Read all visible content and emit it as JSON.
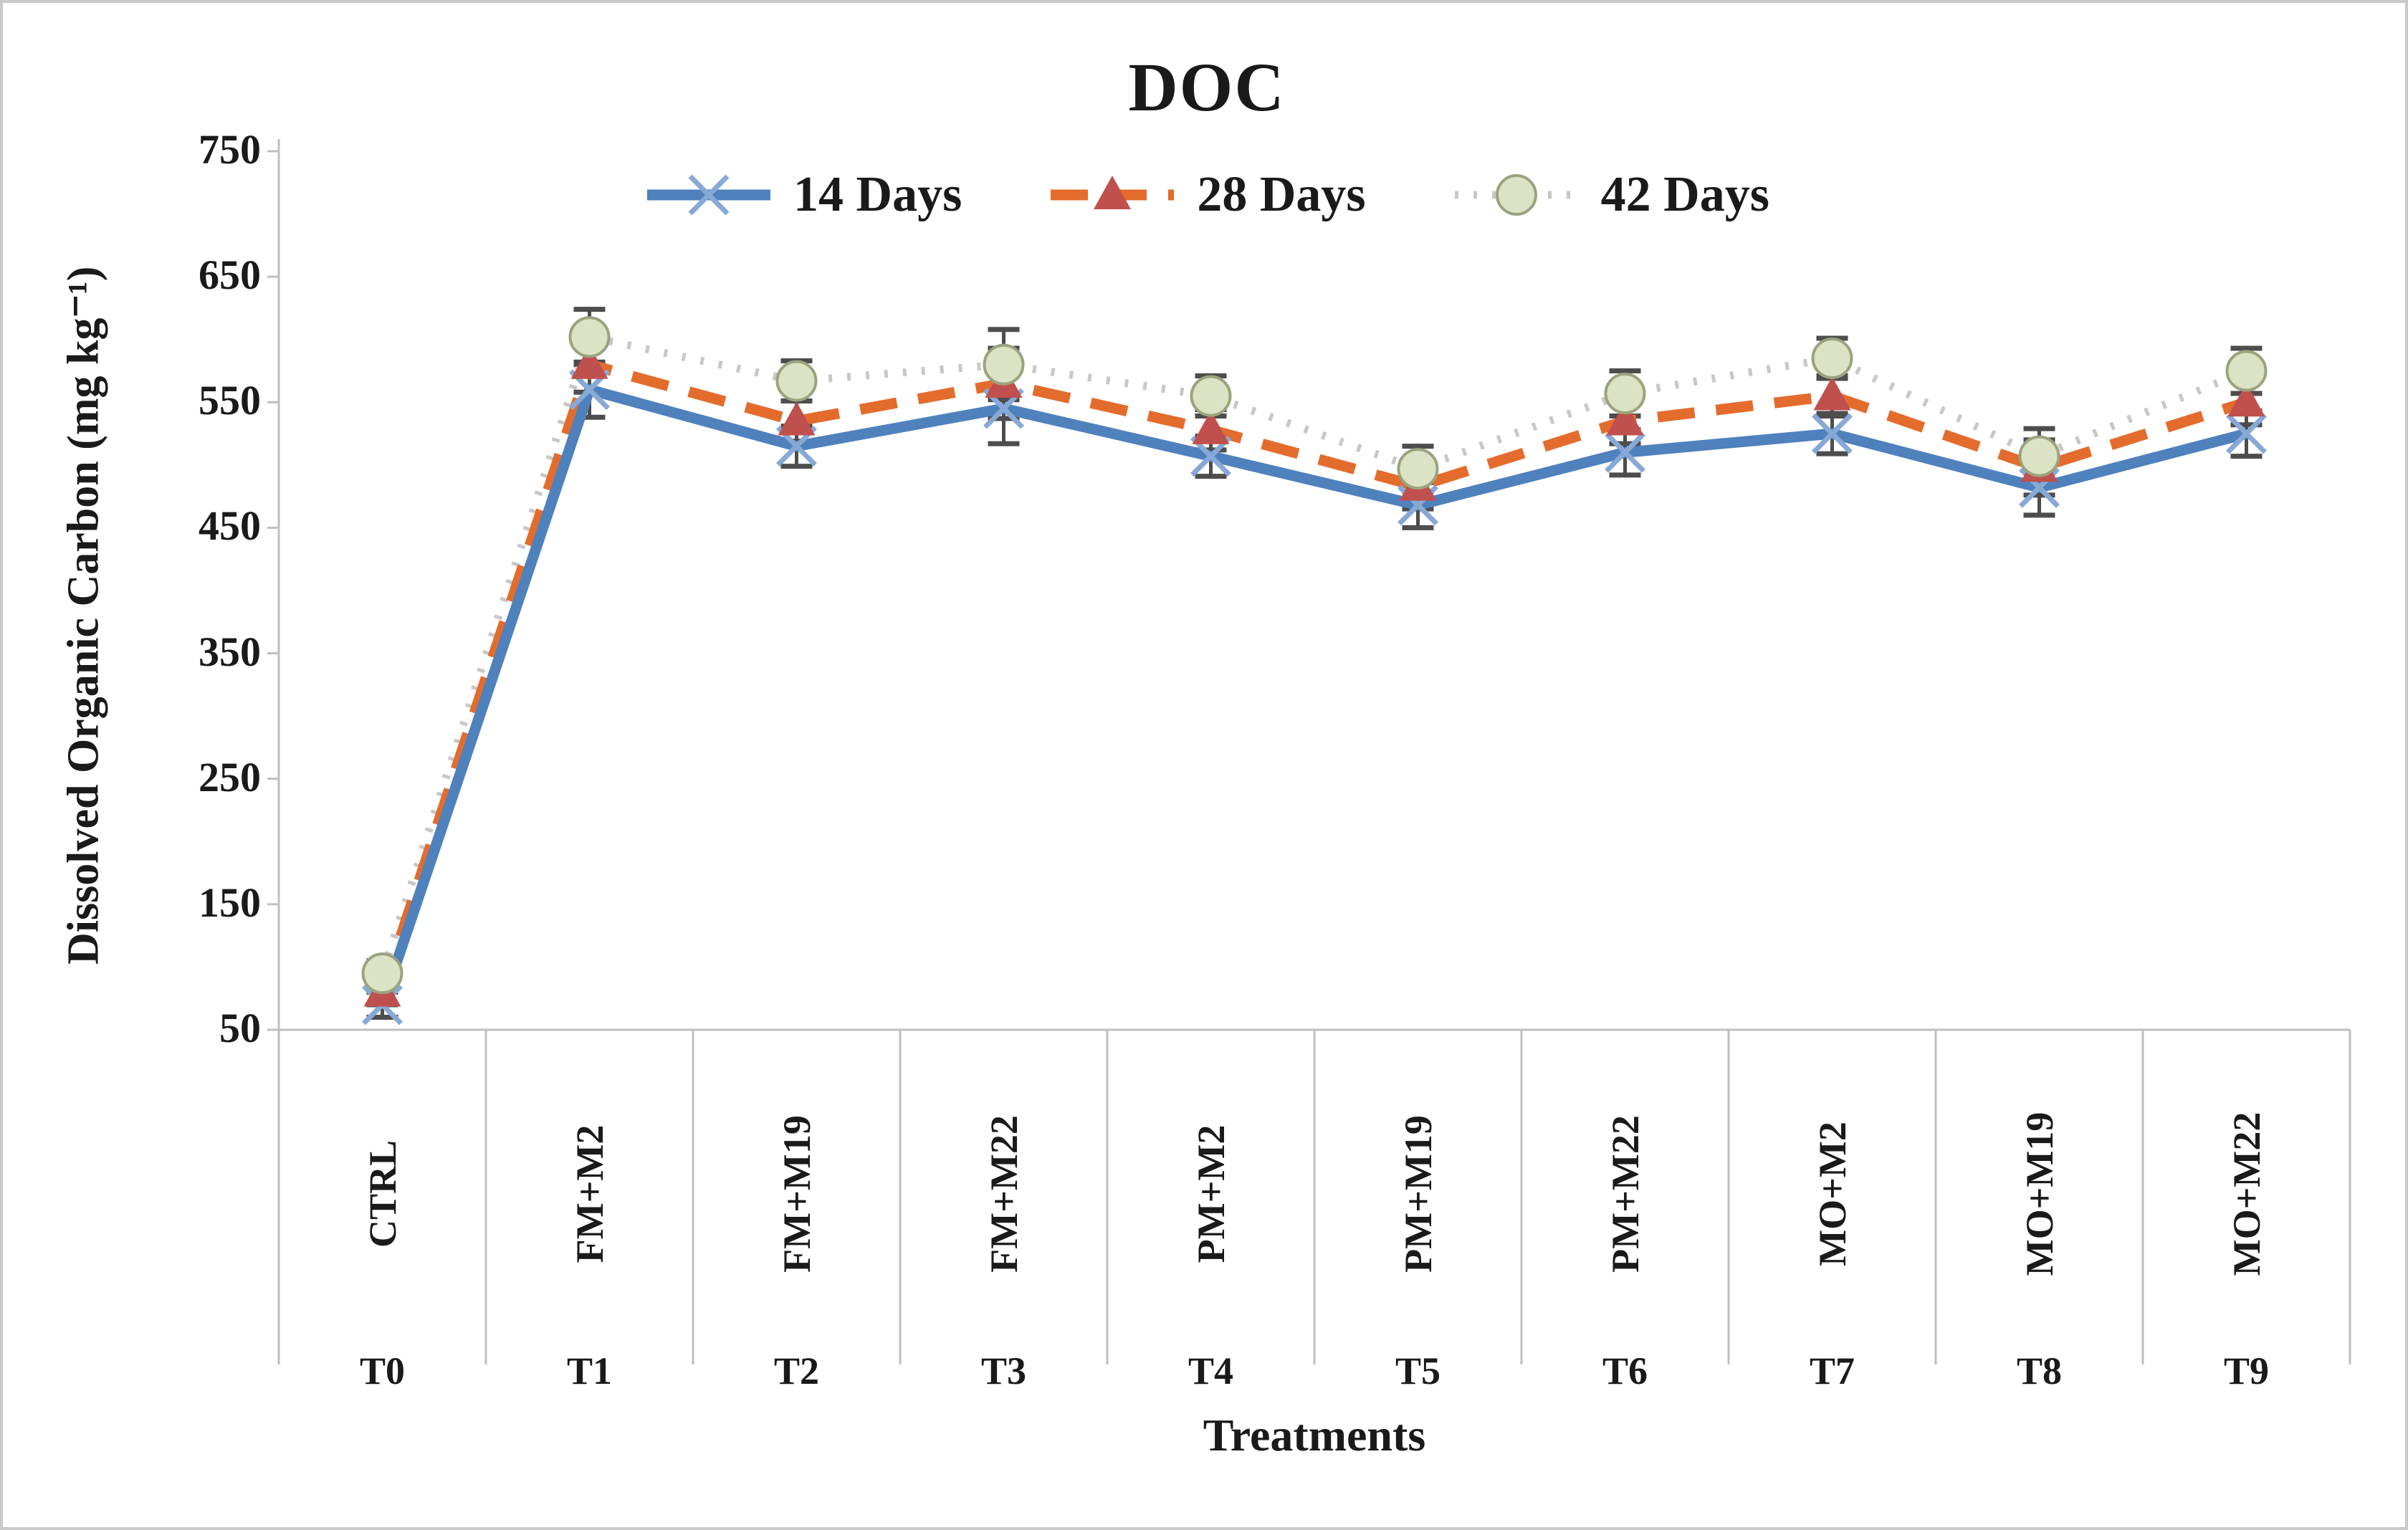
{
  "title": "DOC",
  "chart_data": {
    "type": "line",
    "title": "DOC",
    "xlabel": "Treatments",
    "ylabel": "Dissolved Organic Carbon (mg kg⁻¹)",
    "ylim": [
      50,
      750
    ],
    "yticks": [
      750,
      650,
      550,
      450,
      350,
      250,
      150,
      50
    ],
    "grid": false,
    "legend_position": "top-center",
    "categories": [
      "CTRL",
      "FM+M2",
      "FM+M19",
      "FM+M22",
      "PM+M2",
      "PM+M19",
      "PM+M22",
      "MO+M2",
      "MO+M19",
      "MO+M22"
    ],
    "treatment_codes": [
      "T0",
      "T1",
      "T2",
      "T3",
      "T4",
      "T5",
      "T6",
      "T7",
      "T8",
      "T9"
    ],
    "series": [
      {
        "name": "14 Days",
        "marker": "x",
        "line_style": "solid",
        "line_color": "#4F81BD",
        "marker_color": "#87A9D6",
        "values": [
          70,
          560,
          515,
          545,
          507,
          468,
          510,
          525,
          482,
          525
        ]
      },
      {
        "name": "28 Days",
        "marker": "triangle",
        "line_style": "dashed",
        "line_color": "#E36C2D",
        "marker_color": "#C0504D",
        "values": [
          80,
          580,
          535,
          565,
          528,
          483,
          535,
          555,
          498,
          550
        ]
      },
      {
        "name": "42 Days",
        "marker": "circle",
        "line_style": "dotted",
        "line_color": "#C8C8C8",
        "marker_color": "#DCE3C4",
        "marker_edge_color": "#9AA37E",
        "values": [
          95,
          602,
          567,
          580,
          555,
          497,
          557,
          585,
          507,
          575
        ]
      }
    ],
    "error_bars": [
      10,
      22,
      16,
      28,
      16,
      18,
      18,
      16,
      22,
      18
    ],
    "error_bar_color": "#4D4D4D",
    "axis_line_color": "#BFBFBF"
  }
}
